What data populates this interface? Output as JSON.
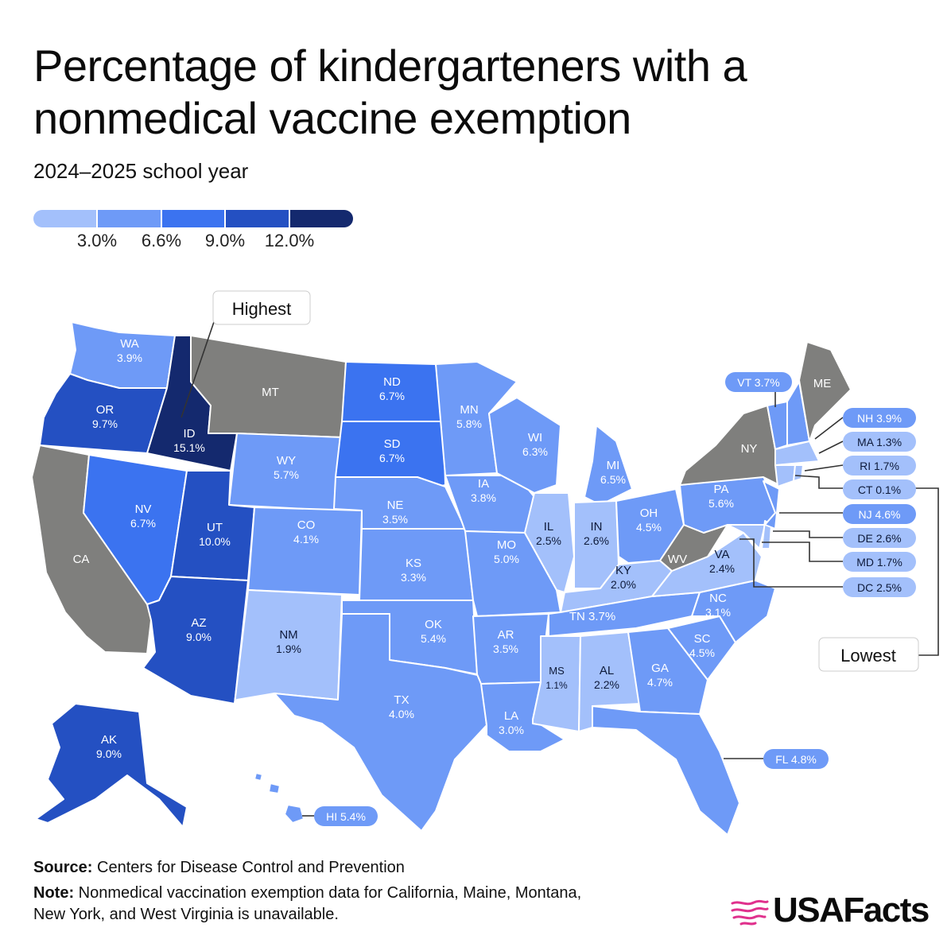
{
  "title": "Percentage of kindergarteners with a nonmedical vaccine exemption",
  "subtitle": "2024–2025 school year",
  "colors": {
    "bins": [
      "#a3c0fb",
      "#6e9af7",
      "#3b73f0",
      "#2450c2",
      "#14296e"
    ],
    "unavailable": "#7f7f7d",
    "accent_logo": "#e0318d"
  },
  "legend": {
    "ticks": [
      "3.0%",
      "6.6%",
      "9.0%",
      "12.0%"
    ]
  },
  "annotations": {
    "highest": "Highest",
    "lowest": "Lowest"
  },
  "states": {
    "WA": {
      "abbr": "WA",
      "value": "3.9%"
    },
    "OR": {
      "abbr": "OR",
      "value": "9.7%"
    },
    "CA": {
      "abbr": "CA",
      "value": ""
    },
    "ID": {
      "abbr": "ID",
      "value": "15.1%"
    },
    "NV": {
      "abbr": "NV",
      "value": "6.7%"
    },
    "MT": {
      "abbr": "MT",
      "value": ""
    },
    "WY": {
      "abbr": "WY",
      "value": "5.7%"
    },
    "UT": {
      "abbr": "UT",
      "value": "10.0%"
    },
    "AZ": {
      "abbr": "AZ",
      "value": "9.0%"
    },
    "CO": {
      "abbr": "CO",
      "value": "4.1%"
    },
    "NM": {
      "abbr": "NM",
      "value": "1.9%"
    },
    "ND": {
      "abbr": "ND",
      "value": "6.7%"
    },
    "SD": {
      "abbr": "SD",
      "value": "6.7%"
    },
    "NE": {
      "abbr": "NE",
      "value": "3.5%"
    },
    "KS": {
      "abbr": "KS",
      "value": "3.3%"
    },
    "OK": {
      "abbr": "OK",
      "value": "5.4%"
    },
    "TX": {
      "abbr": "TX",
      "value": "4.0%"
    },
    "MN": {
      "abbr": "MN",
      "value": "5.8%"
    },
    "IA": {
      "abbr": "IA",
      "value": "3.8%"
    },
    "MO": {
      "abbr": "MO",
      "value": "5.0%"
    },
    "AR": {
      "abbr": "AR",
      "value": "3.5%"
    },
    "LA": {
      "abbr": "LA",
      "value": "3.0%"
    },
    "WI": {
      "abbr": "WI",
      "value": "6.3%"
    },
    "IL": {
      "abbr": "IL",
      "value": "2.5%"
    },
    "MI": {
      "abbr": "MI",
      "value": "6.5%"
    },
    "IN": {
      "abbr": "IN",
      "value": "2.6%"
    },
    "OH": {
      "abbr": "OH",
      "value": "4.5%"
    },
    "KY": {
      "abbr": "KY",
      "value": "2.0%"
    },
    "TN": {
      "abbr": "TN",
      "value": "3.7%"
    },
    "MS": {
      "abbr": "MS",
      "value": "1.1%"
    },
    "AL": {
      "abbr": "AL",
      "value": "2.2%"
    },
    "GA": {
      "abbr": "GA",
      "value": "4.7%"
    },
    "FL": {
      "abbr": "FL",
      "value": "4.8%"
    },
    "SC": {
      "abbr": "SC",
      "value": "4.5%"
    },
    "NC": {
      "abbr": "NC",
      "value": "3.1%"
    },
    "VA": {
      "abbr": "VA",
      "value": "2.4%"
    },
    "WV": {
      "abbr": "WV",
      "value": ""
    },
    "PA": {
      "abbr": "PA",
      "value": "5.6%"
    },
    "NY": {
      "abbr": "NY",
      "value": ""
    },
    "ME": {
      "abbr": "ME",
      "value": ""
    },
    "AK": {
      "abbr": "AK",
      "value": "9.0%"
    },
    "HI": {
      "abbr": "HI",
      "value": "5.4%"
    },
    "VT": {
      "abbr": "VT",
      "value": "3.7%"
    },
    "NH": {
      "abbr": "NH",
      "value": "3.9%"
    },
    "MA": {
      "abbr": "MA",
      "value": "1.3%"
    },
    "RI": {
      "abbr": "RI",
      "value": "1.7%"
    },
    "CT": {
      "abbr": "CT",
      "value": "0.1%"
    },
    "NJ": {
      "abbr": "NJ",
      "value": "4.6%"
    },
    "DE": {
      "abbr": "DE",
      "value": "2.6%"
    },
    "MD": {
      "abbr": "MD",
      "value": "1.7%"
    },
    "DC": {
      "abbr": "DC",
      "value": "2.5%"
    }
  },
  "footer": {
    "source_label": "Source:",
    "source_text": "Centers for Disease Control and Prevention",
    "note_label": "Note:",
    "note_text": "Nonmedical vaccination exemption data for California, Maine, Montana, New York, and West Virginia is unavailable."
  },
  "logo": {
    "text": "USAFacts"
  }
}
